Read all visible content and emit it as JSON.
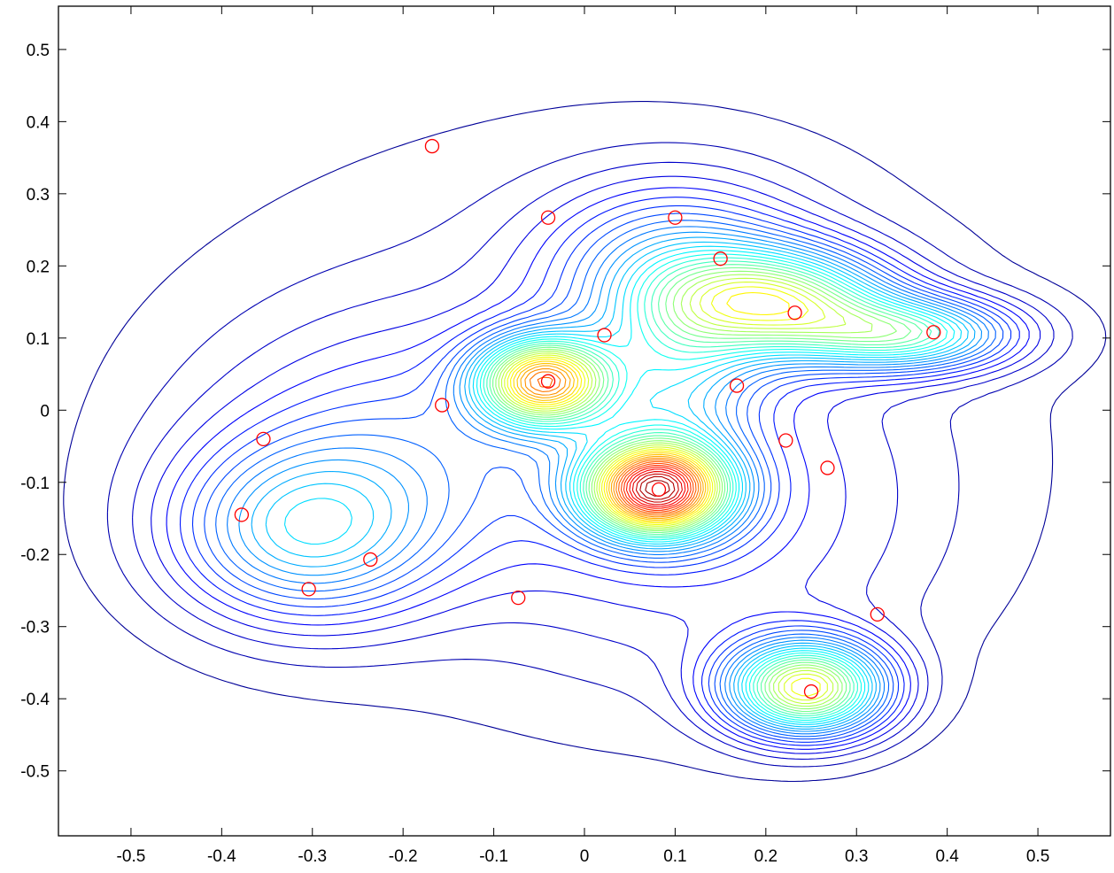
{
  "chart_data": {
    "type": "contour",
    "title": "",
    "xlabel": "",
    "ylabel": "",
    "xlim": [
      -0.58,
      0.58
    ],
    "ylim": [
      -0.59,
      0.56
    ],
    "x_ticks": [
      -0.5,
      -0.4,
      -0.3,
      -0.2,
      -0.1,
      0,
      0.1,
      0.2,
      0.3,
      0.4,
      0.5
    ],
    "y_ticks": [
      0.5,
      0.4,
      0.3,
      0.2,
      0.1,
      0,
      -0.1,
      -0.2,
      -0.3,
      -0.4,
      -0.5
    ],
    "x_tick_labels": [
      "-0.5",
      "-0.4",
      "-0.3",
      "-0.2",
      "-0.1",
      "0",
      "0.1",
      "0.2",
      "0.3",
      "0.4",
      "0.5"
    ],
    "y_tick_labels": [
      "0.5",
      "0.4",
      "0.3",
      "0.2",
      "0.1",
      "0",
      "-0.1",
      "-0.2",
      "-0.3",
      "-0.4",
      "-0.5"
    ],
    "grid": false,
    "colormap": "jet",
    "contour_levels": 40,
    "peaks": [
      {
        "x": 0.08,
        "y": -0.11,
        "height": 1.0,
        "sx": 0.055,
        "sy": 0.045
      },
      {
        "x": -0.045,
        "y": 0.04,
        "height": 0.78,
        "sx": 0.05,
        "sy": 0.042
      },
      {
        "x": 0.245,
        "y": -0.385,
        "height": 0.72,
        "sx": 0.06,
        "sy": 0.045
      },
      {
        "x": 0.215,
        "y": 0.15,
        "height": 0.55,
        "sx": 0.085,
        "sy": 0.05
      },
      {
        "x": 0.36,
        "y": 0.105,
        "height": 0.45,
        "sx": 0.08,
        "sy": 0.035
      },
      {
        "x": 0.1,
        "y": 0.2,
        "height": 0.25,
        "sx": 0.1,
        "sy": 0.08
      },
      {
        "x": -0.31,
        "y": -0.17,
        "height": 0.32,
        "sx": 0.1,
        "sy": 0.085
      },
      {
        "x": -0.2,
        "y": -0.05,
        "height": 0.14,
        "sx": 0.15,
        "sy": 0.12
      },
      {
        "x": 0.15,
        "y": -0.15,
        "height": 0.1,
        "sx": 0.16,
        "sy": 0.16
      },
      {
        "x": 0.1,
        "y": 0.05,
        "height": 0.22,
        "sx": 0.06,
        "sy": 0.09
      },
      {
        "x": 0.0,
        "y": 0.0,
        "height": 0.08,
        "sx": 0.35,
        "sy": 0.3
      }
    ],
    "points": [
      {
        "x": -0.168,
        "y": 0.366
      },
      {
        "x": -0.04,
        "y": 0.267
      },
      {
        "x": 0.1,
        "y": 0.267
      },
      {
        "x": 0.15,
        "y": 0.21
      },
      {
        "x": 0.232,
        "y": 0.135
      },
      {
        "x": 0.385,
        "y": 0.108
      },
      {
        "x": 0.022,
        "y": 0.104
      },
      {
        "x": -0.04,
        "y": 0.04
      },
      {
        "x": 0.168,
        "y": 0.034
      },
      {
        "x": -0.157,
        "y": 0.007
      },
      {
        "x": -0.354,
        "y": -0.04
      },
      {
        "x": 0.222,
        "y": -0.042
      },
      {
        "x": 0.268,
        "y": -0.08
      },
      {
        "x": 0.082,
        "y": -0.11
      },
      {
        "x": -0.378,
        "y": -0.145
      },
      {
        "x": -0.236,
        "y": -0.207
      },
      {
        "x": -0.304,
        "y": -0.248
      },
      {
        "x": -0.073,
        "y": -0.26
      },
      {
        "x": 0.323,
        "y": -0.283
      },
      {
        "x": 0.25,
        "y": -0.39
      }
    ],
    "marker": {
      "shape": "circle",
      "color": "#ff0000"
    }
  }
}
